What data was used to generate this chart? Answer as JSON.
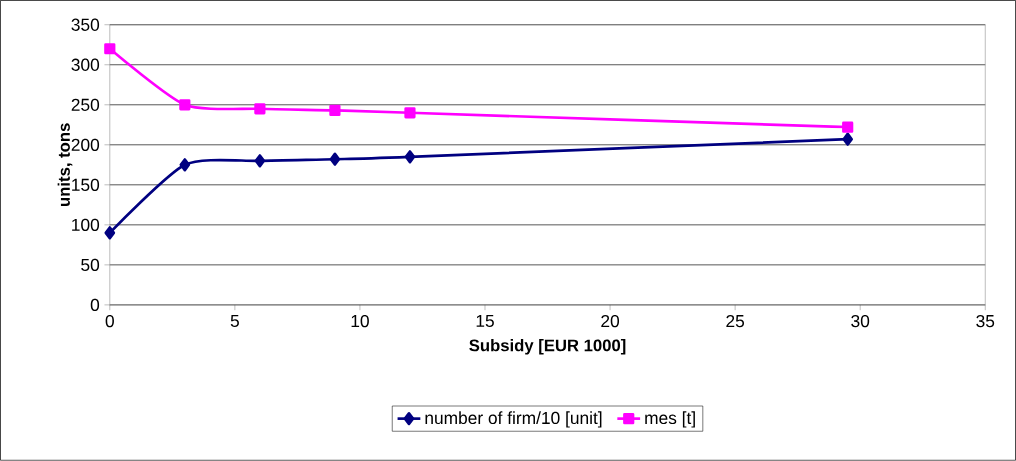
{
  "chart_data": {
    "type": "line",
    "xlabel": "Subsidy [EUR 1000]",
    "ylabel": "units, tons",
    "xlim": [
      0,
      35
    ],
    "xticks": [
      0,
      5,
      10,
      15,
      20,
      25,
      30,
      35
    ],
    "ylim": [
      0,
      350
    ],
    "yticks": [
      0,
      50,
      100,
      150,
      200,
      250,
      300,
      350
    ],
    "grid": "y",
    "legend": "bottom",
    "series": [
      {
        "name": "number of firm/10 [unit]",
        "color": "#000080",
        "marker": "diamond",
        "x": [
          0,
          3,
          6,
          9,
          12,
          29.5
        ],
        "values": [
          90,
          175,
          180,
          182,
          185,
          207
        ]
      },
      {
        "name": "mes [t]",
        "color": "#ff00ff",
        "marker": "square",
        "x": [
          0,
          3,
          6,
          9,
          12,
          29.5
        ],
        "values": [
          320,
          250,
          245,
          243,
          240,
          222
        ]
      }
    ]
  }
}
